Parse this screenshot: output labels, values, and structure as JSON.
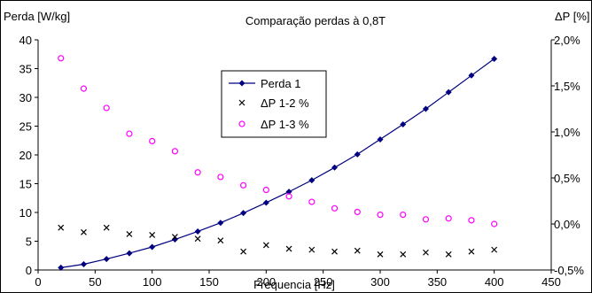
{
  "chart_data": {
    "type": "line",
    "title": "Comparação perdas à 0,8T",
    "xlabel": "Frequencia [Hz]",
    "ylabel": "Perda [W/kg]",
    "y2label": "ΔP [%]",
    "xlim": [
      0,
      450
    ],
    "ylim": [
      0,
      40
    ],
    "y2lim": [
      -0.5,
      2.0
    ],
    "xticks": [
      "0",
      "50",
      "100",
      "150",
      "200",
      "250",
      "300",
      "350",
      "400",
      "450"
    ],
    "yticks": [
      "0",
      "5",
      "10",
      "15",
      "20",
      "25",
      "30",
      "35",
      "40"
    ],
    "y2ticks": [
      "-0,5%",
      "0,0%",
      "0,5%",
      "1,0%",
      "1,5%",
      "2,0%"
    ],
    "grid": false,
    "legend_position": "center-left",
    "x": [
      20,
      40,
      60,
      80,
      100,
      120,
      140,
      160,
      180,
      200,
      220,
      240,
      260,
      280,
      300,
      320,
      340,
      360,
      380,
      400
    ],
    "series": [
      {
        "name": "Perda 1",
        "axis": "left",
        "marker": "diamond",
        "line": true,
        "color": "#000080",
        "values": [
          0.4,
          1.0,
          1.9,
          2.9,
          4.0,
          5.3,
          6.7,
          8.2,
          9.9,
          11.7,
          13.6,
          15.6,
          17.8,
          20.1,
          22.7,
          25.3,
          28.0,
          30.9,
          33.8,
          36.7
        ]
      },
      {
        "name": "ΔP 1-2 %",
        "axis": "right",
        "marker": "x",
        "line": false,
        "color": "#000000",
        "values": [
          -0.04,
          -0.09,
          -0.04,
          -0.11,
          -0.12,
          -0.14,
          -0.16,
          -0.18,
          -0.3,
          -0.23,
          -0.27,
          -0.28,
          -0.3,
          -0.29,
          -0.33,
          -0.33,
          -0.31,
          -0.33,
          -0.3,
          -0.28
        ]
      },
      {
        "name": "ΔP 1-3 %",
        "axis": "right",
        "marker": "circle",
        "line": false,
        "color": "#ff00ff",
        "values": [
          1.8,
          1.47,
          1.26,
          0.98,
          0.9,
          0.79,
          0.56,
          0.51,
          0.42,
          0.37,
          0.3,
          0.24,
          0.17,
          0.13,
          0.1,
          0.1,
          0.05,
          0.06,
          0.04,
          0.0
        ]
      }
    ]
  }
}
